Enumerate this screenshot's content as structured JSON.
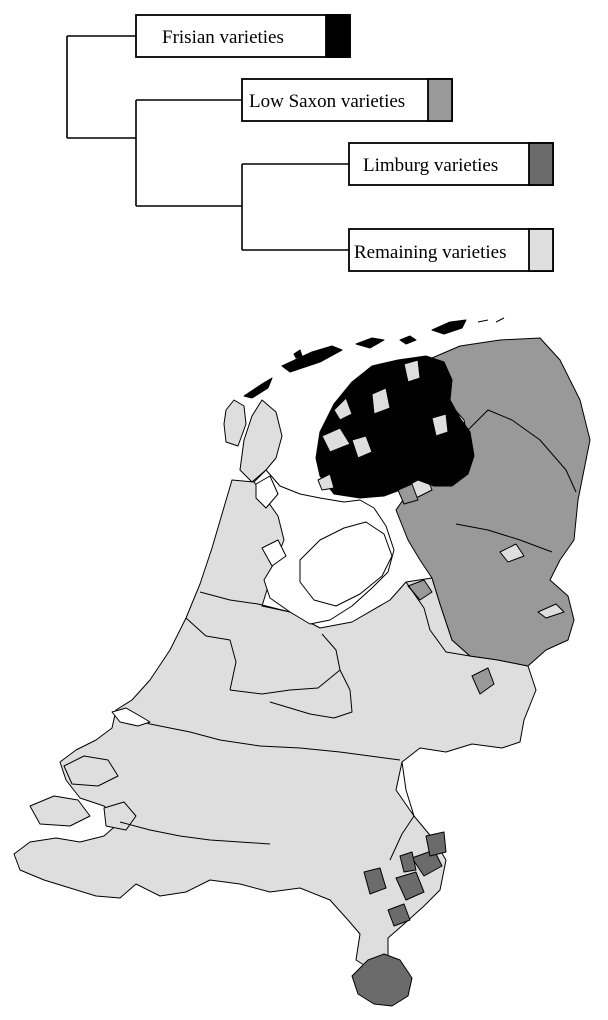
{
  "dendrogram": {
    "leaves": [
      {
        "id": "frisian",
        "label": "Frisian varieties",
        "color": "#000000"
      },
      {
        "id": "lowsaxon",
        "label": "Low Saxon varieties",
        "color": "#999999"
      },
      {
        "id": "limburg",
        "label": "Limburg varieties",
        "color": "#6b6b6b"
      },
      {
        "id": "remaining",
        "label": "Remaining varieties",
        "color": "#dedede"
      }
    ]
  },
  "map": {
    "colors": {
      "frisian": "#000000",
      "lowsaxon": "#999999",
      "limburg": "#6b6b6b",
      "remaining": "#dedede",
      "water": "#ffffff",
      "border": "#000000"
    }
  }
}
